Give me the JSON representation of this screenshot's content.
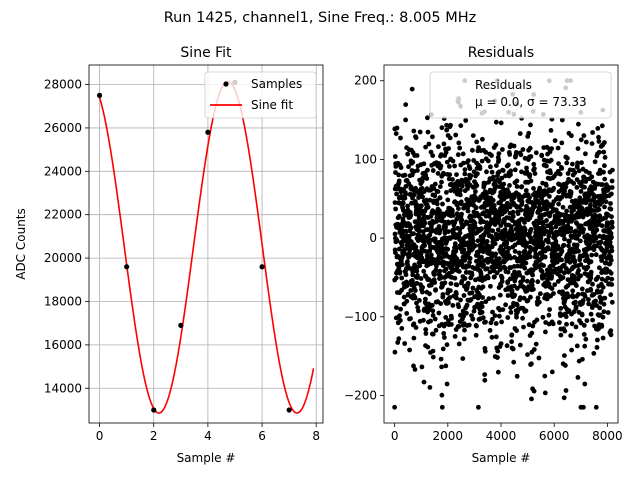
{
  "suptitle": "Run 1425, channel1, Sine Freq.: 8.005 MHz",
  "chart_data": [
    {
      "type": "line",
      "title": "Sine Fit",
      "xlabel": "Sample #",
      "ylabel": "ADC Counts",
      "xlim": [
        -0.39,
        8.25
      ],
      "ylim": [
        12400,
        28900
      ],
      "xticks": [
        0,
        2,
        4,
        6,
        8
      ],
      "yticks": [
        14000,
        16000,
        18000,
        20000,
        22000,
        24000,
        26000,
        28000
      ],
      "grid": true,
      "legend": {
        "position": "top-right",
        "entries": [
          "Samples",
          "Sine fit"
        ]
      },
      "samples": {
        "name": "Samples",
        "x": [
          0,
          1,
          2,
          3,
          4,
          5,
          6,
          7
        ],
        "y": [
          27500,
          19600,
          13000,
          16900,
          25800,
          28100,
          19600,
          13000
        ]
      },
      "fit": {
        "name": "Sine fit",
        "color": "#ff0000",
        "offset": 20500,
        "amplitude": 7640,
        "period": 5.1,
        "phase_sample": 4.74,
        "x_range": [
          0,
          7.9
        ]
      }
    },
    {
      "type": "scatter",
      "title": "Residuals",
      "xlabel": "Sample #",
      "xlim": [
        -400,
        8400
      ],
      "ylim": [
        -235,
        220
      ],
      "xticks": [
        0,
        2000,
        4000,
        6000,
        8000
      ],
      "yticks": [
        -200,
        -100,
        0,
        100,
        200
      ],
      "grid": false,
      "legend": {
        "position": "top-right",
        "entries": [
          "Residuals",
          "μ = 0.0, σ = 73.33"
        ]
      },
      "series": {
        "name": "Residuals",
        "n_points": 8192,
        "mean": 0.0,
        "std": 73.33,
        "min": -215,
        "max": 200,
        "band_period_samples": 640,
        "color": "#000000"
      }
    }
  ],
  "ticks": {
    "left_x": [
      "0",
      "2",
      "4",
      "6",
      "8"
    ],
    "left_y": [
      "14000",
      "16000",
      "18000",
      "20000",
      "22000",
      "24000",
      "26000",
      "28000"
    ],
    "right_x": [
      "0",
      "2000",
      "4000",
      "6000",
      "8000"
    ],
    "right_y": [
      "−200",
      "−100",
      "0",
      "100",
      "200"
    ]
  }
}
